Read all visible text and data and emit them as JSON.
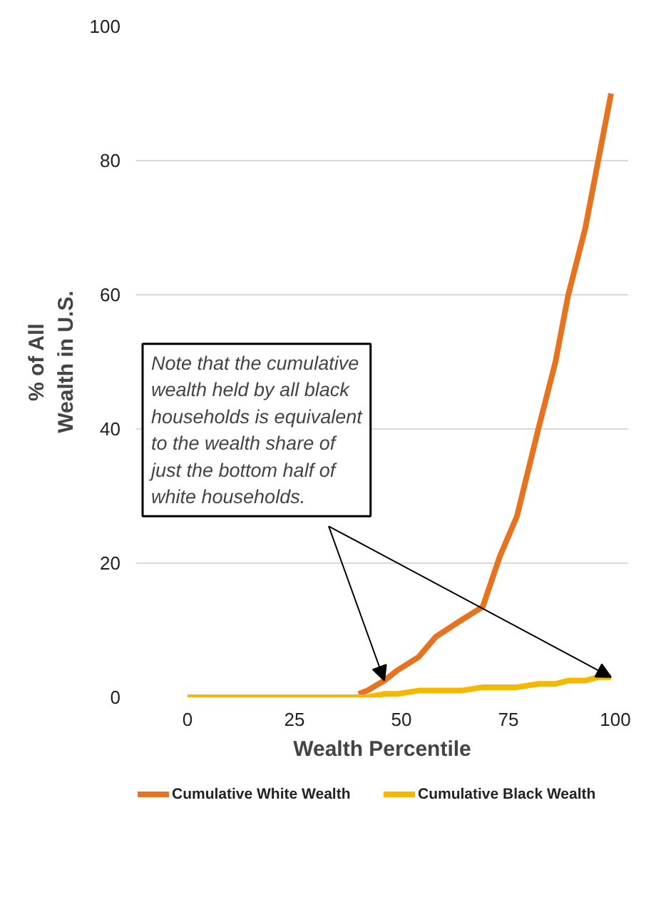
{
  "chart_data": {
    "type": "line",
    "xlabel": "Wealth Percentile",
    "ylabel": "% of All Wealth in U.S.",
    "x": [
      0,
      10,
      20,
      30,
      35,
      40,
      42,
      46,
      49,
      54,
      58,
      64,
      69,
      73,
      77,
      82,
      86,
      89,
      93,
      96,
      99
    ],
    "series": [
      {
        "name": "Cumulative White Wealth",
        "color": "#e8731e",
        "x": [
          40,
          42,
          46,
          49,
          54,
          58,
          64,
          69,
          73,
          77,
          82,
          86,
          89,
          93,
          96,
          99
        ],
        "values": [
          0.5,
          1,
          2.5,
          4,
          6,
          9,
          11.5,
          13.5,
          21,
          27,
          40,
          50,
          60,
          70,
          80,
          90
        ]
      },
      {
        "name": "Cumulative Black Wealth",
        "color": "#f5b800",
        "values": [
          0,
          0,
          0,
          0,
          0,
          0,
          0,
          0.5,
          0.5,
          1,
          1,
          1,
          1.5,
          1.5,
          1.5,
          2,
          2,
          2.5,
          2.5,
          3,
          3
        ]
      }
    ],
    "annotations": [
      {
        "text": "Note that the cumulative\nwealth held by all black\nhouseholds is equivalent\nto the wealth share of\njust the bottom half of\nwhite households.",
        "x": 99,
        "y": 3
      }
    ],
    "xlim": [
      -12,
      103
    ],
    "xticks": [
      0,
      25,
      50,
      75,
      100
    ],
    "ylim": [
      0,
      100
    ],
    "yticks": [
      0,
      20,
      40,
      60,
      80,
      100
    ],
    "grid": "y",
    "legend": "bottom",
    "marker": "none",
    "line_style": "solid"
  }
}
